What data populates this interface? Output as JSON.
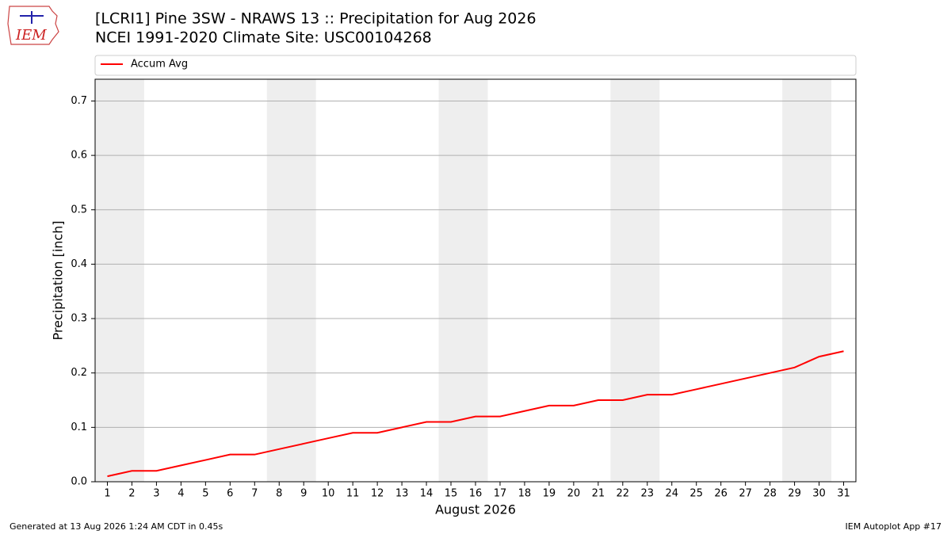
{
  "logo": "IEM",
  "footer": {
    "left": "Generated at 13 Aug 2026 1:24 AM CDT in 0.45s",
    "right": "IEM Autoplot App #17"
  },
  "chart_data": {
    "type": "line",
    "title": "[LCRI1] Pine 3SW - NRAWS 13 :: Precipitation for Aug 2026",
    "subtitle": "NCEI 1991-2020 Climate Site: USC00104268",
    "x_label": "August 2026",
    "y_label": "Precipitation [inch]",
    "x": [
      1,
      2,
      3,
      4,
      5,
      6,
      7,
      8,
      9,
      10,
      11,
      12,
      13,
      14,
      15,
      16,
      17,
      18,
      19,
      20,
      21,
      22,
      23,
      24,
      25,
      26,
      27,
      28,
      29,
      30,
      31
    ],
    "series": [
      {
        "name": "Accum Avg",
        "color": "#ff0000",
        "values": [
          0.01,
          0.02,
          0.02,
          0.03,
          0.04,
          0.05,
          0.05,
          0.06,
          0.07,
          0.08,
          0.09,
          0.09,
          0.1,
          0.11,
          0.11,
          0.12,
          0.12,
          0.13,
          0.14,
          0.14,
          0.15,
          0.15,
          0.16,
          0.16,
          0.17,
          0.18,
          0.19,
          0.2,
          0.21,
          0.23,
          0.24
        ]
      }
    ],
    "shaded_ranges": [
      [
        0.5,
        2.5
      ],
      [
        7.5,
        9.5
      ],
      [
        14.5,
        16.5
      ],
      [
        21.5,
        23.5
      ],
      [
        28.5,
        30.5
      ]
    ],
    "shade_color": "#eeeeee",
    "xlim": [
      0.5,
      31.5
    ],
    "ylim": [
      0,
      0.74
    ],
    "xticks": [
      1,
      2,
      3,
      4,
      5,
      6,
      7,
      8,
      9,
      10,
      11,
      12,
      13,
      14,
      15,
      16,
      17,
      18,
      19,
      20,
      21,
      22,
      23,
      24,
      25,
      26,
      27,
      28,
      29,
      30,
      31
    ],
    "yticks": [
      {
        "value": 0,
        "label": "0.0"
      },
      0.1,
      0.2,
      0.3,
      0.4,
      0.5,
      0.6,
      0.7
    ],
    "grid": true,
    "legend": "top"
  }
}
